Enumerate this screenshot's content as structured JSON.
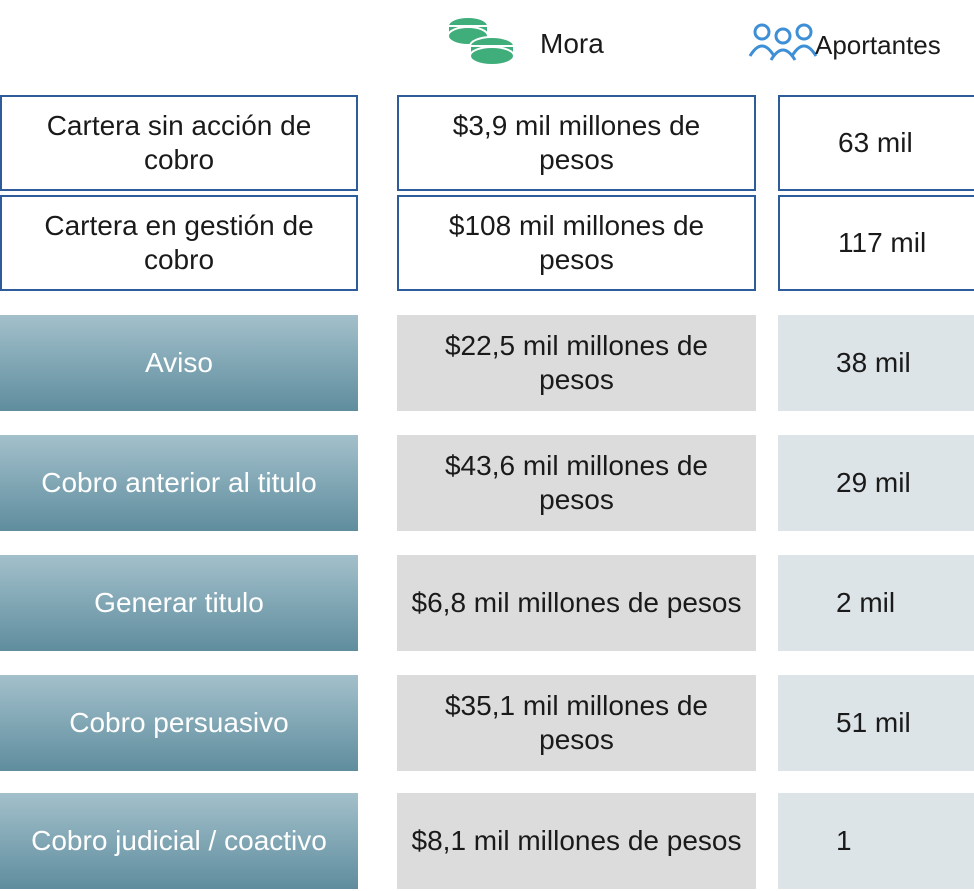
{
  "header": {
    "mora": "Mora",
    "aportantes": "Aportantes"
  },
  "table": {
    "rows": [
      [
        "Cartera sin acción de cobro",
        "$3,9 mil millones de pesos",
        "63 mil"
      ],
      [
        "Cartera en gestión de cobro",
        "$108 mil millones de pesos",
        "117 mil"
      ],
      [
        "Aviso",
        "$22,5 mil millones de pesos",
        "38 mil"
      ],
      [
        "Cobro anterior al titulo",
        "$43,6 mil millones de pesos",
        "29 mil"
      ],
      [
        "Generar titulo",
        "$6,8 mil millones de pesos",
        "2 mil"
      ],
      [
        "Cobro persuasivo",
        "$35,1 mil millones de pesos",
        "51 mil"
      ],
      [
        "Cobro judicial / coactivo",
        "$8,1 mil millones de pesos",
        "1"
      ]
    ]
  }
}
